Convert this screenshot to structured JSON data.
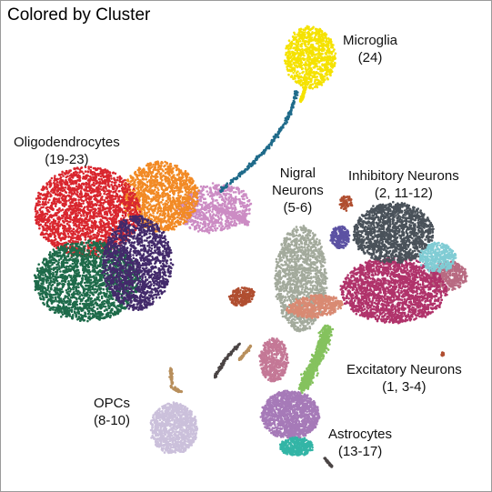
{
  "chart_data": {
    "type": "scatter",
    "title": "Colored by Cluster",
    "xlabel": "",
    "ylabel": "",
    "grid": false,
    "legend": "none",
    "clusters": [
      {
        "name": "Microglia",
        "ids": "(24)"
      },
      {
        "name": "Oligodendrocytes",
        "ids": "(19-23)"
      },
      {
        "name_line1": "Nigral",
        "name_line2": "Neurons",
        "ids": "(5-6)"
      },
      {
        "name": "Inhibitory Neurons",
        "ids": "(2, 11-12)"
      },
      {
        "name": "Excitatory Neurons",
        "ids": "(1, 3-4)"
      },
      {
        "name": "OPCs",
        "ids": "(8-10)"
      },
      {
        "name": "Astrocytes",
        "ids": "(13-17)"
      }
    ],
    "colors": {
      "microglia": "#f5e200",
      "microglia_trail": "#1f6b8a",
      "oligo_red": "#d9262e",
      "oligo_orange": "#f28a25",
      "oligo_green": "#1e6b4a",
      "oligo_purple": "#432a6b",
      "oligo_pink": "#cc8cc4",
      "nigral_gray": "#a3aa9c",
      "nigral_purple": "#5c52a3",
      "inhib_slate": "#4a525a",
      "inhib_cyan": "#80ccd4",
      "inhib_magenta": "#b0336b",
      "inhib_mauve": "#b86b82",
      "brown": "#b04e30",
      "salmon": "#d98a73",
      "excit_green": "#85c25e",
      "astro_purple": "#a67ab8",
      "astro_teal": "#33b5a6",
      "opc_lavender": "#cbc0db",
      "opc_tan": "#b88f5c",
      "dark_gray": "#4a4444",
      "rose": "#c47896"
    }
  }
}
